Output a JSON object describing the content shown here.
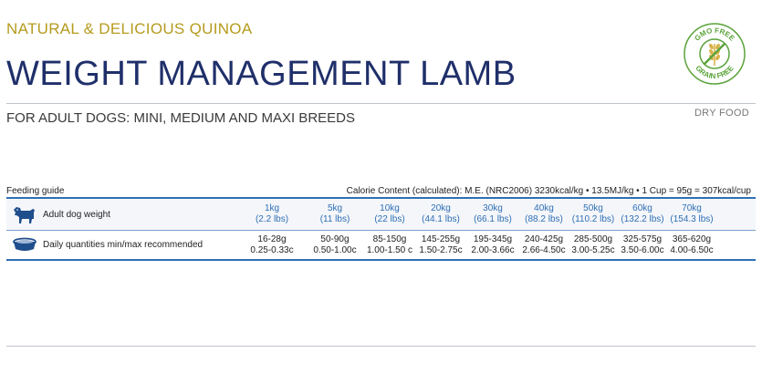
{
  "product": {
    "subtitle": "NATURAL & DELICIOUS QUINOA",
    "title": "WEIGHT MANAGEMENT LAMB",
    "target": "FOR ADULT DOGS: MINI, MEDIUM AND MAXI BREEDS",
    "food_type": "DRY FOOD"
  },
  "badge": {
    "top_text": "GMO FREE",
    "bottom_text": "GRAIN FREE",
    "icon": "crossed-wheat-icon",
    "colors": {
      "ring": "#5aa33a",
      "wheat": "#d8b24a",
      "cross": "#5aa33a"
    }
  },
  "feeding_guide": {
    "label": "Feeding guide",
    "calorie_content": "Calorie Content (calculated): M.E. (NRC2006) 3230kcal/kg • 13.5MJ/kg • 1 Cup = 95g = 307kcal/cup",
    "weight_row_label": "Adult dog weight",
    "quantity_row_label": "Daily quantities min/max recommended",
    "columns": [
      {
        "kg": "1kg",
        "lbs": "(2.2 lbs)",
        "grams": "16-28g",
        "cups": "0.25-0.33c"
      },
      {
        "kg": "5kg",
        "lbs": "(11 lbs)",
        "grams": "50-90g",
        "cups": "0.50-1.00c"
      },
      {
        "kg": "10kg",
        "lbs": "(22 lbs)",
        "grams": "85-150g",
        "cups": "1.00-1.50 c"
      },
      {
        "kg": "20kg",
        "lbs": "(44.1 lbs)",
        "grams": "145-255g",
        "cups": "1.50-2.75c"
      },
      {
        "kg": "30kg",
        "lbs": "(66.1 lbs)",
        "grams": "195-345g",
        "cups": "2.00-3.66c"
      },
      {
        "kg": "40kg",
        "lbs": "(88.2 lbs)",
        "grams": "240-425g",
        "cups": "2.66-4.50c"
      },
      {
        "kg": "50kg",
        "lbs": "(110.2 lbs)",
        "grams": "285-500g",
        "cups": "3.00-5.25c"
      },
      {
        "kg": "60kg",
        "lbs": "(132.2 lbs)",
        "grams": "325-575g",
        "cups": "3.50-6.00c"
      },
      {
        "kg": "70kg",
        "lbs": "(154.3 lbs)",
        "grams": "365-620g",
        "cups": "4.00-6.50c"
      }
    ]
  },
  "colors": {
    "title": "#1f2f6a",
    "subtitle": "#b59b1e",
    "accent_blue": "#2f6fb4",
    "rule_gray": "#bfc4cc"
  },
  "icons": {
    "weight_row": "dog-icon",
    "quantity_row": "food-bowl-icon"
  }
}
